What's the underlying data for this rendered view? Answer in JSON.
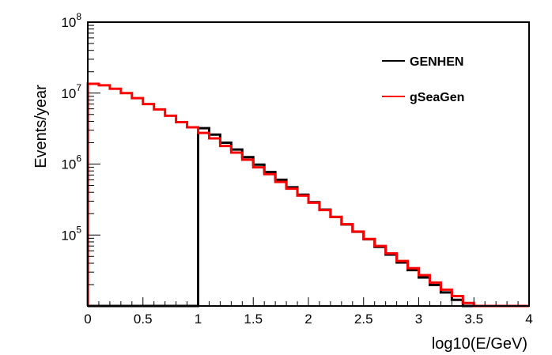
{
  "chart_data": {
    "type": "line",
    "title": "",
    "xlabel": "log10(E/GeV)",
    "ylabel": "Events/year",
    "xlim": [
      0,
      4
    ],
    "ylim": [
      10000,
      100000000
    ],
    "y_scale": "log",
    "grid": false,
    "legend_position": "top-right",
    "x_ticks": [
      "0",
      "0.5",
      "1",
      "1.5",
      "2",
      "2.5",
      "3",
      "3.5",
      "4"
    ],
    "y_ticks": [
      {
        "value": 100000,
        "base": "10",
        "exp": "5"
      },
      {
        "value": 1000000,
        "base": "10",
        "exp": "6"
      },
      {
        "value": 10000000,
        "base": "10",
        "exp": "7"
      },
      {
        "value": 100000000,
        "base": "10",
        "exp": "8"
      }
    ],
    "bin_edges": [
      0,
      0.1,
      0.2,
      0.3,
      0.4,
      0.5,
      0.6,
      0.7,
      0.8,
      0.9,
      1.0,
      1.1,
      1.2,
      1.3,
      1.4,
      1.5,
      1.6,
      1.7,
      1.8,
      1.9,
      2.0,
      2.1,
      2.2,
      2.3,
      2.4,
      2.5,
      2.6,
      2.7,
      2.8,
      2.9,
      3.0,
      3.1,
      3.2,
      3.3,
      3.4,
      3.5,
      3.6,
      3.7,
      3.8,
      3.9,
      4.0
    ],
    "series": [
      {
        "name": "GENHEN",
        "color": "#000000",
        "values": [
          10000,
          10000,
          10000,
          10000,
          10000,
          10000,
          10000,
          10000,
          10000,
          10000,
          3200000,
          2600000,
          2000000,
          1600000,
          1250000,
          980000,
          770000,
          600000,
          470000,
          370000,
          290000,
          228000,
          180000,
          141000,
          111000,
          87000,
          68000,
          53000,
          41000,
          32000,
          25200,
          19800,
          15500,
          12200,
          10000,
          10000,
          10000,
          10000,
          10000,
          10000
        ]
      },
      {
        "name": "gSeaGen",
        "color": "#ff0000",
        "values": [
          13500000,
          12900000,
          11500000,
          10000000,
          8500000,
          7000000,
          5900000,
          4800000,
          3900000,
          3300000,
          2750000,
          2300000,
          1800000,
          1450000,
          1150000,
          900000,
          720000,
          560000,
          450000,
          360000,
          285000,
          225000,
          180000,
          142000,
          112000,
          88000,
          70000,
          55000,
          43000,
          34000,
          27200,
          21400,
          17000,
          13800,
          11000,
          10000,
          10000,
          10000,
          10000,
          10000
        ]
      }
    ]
  }
}
